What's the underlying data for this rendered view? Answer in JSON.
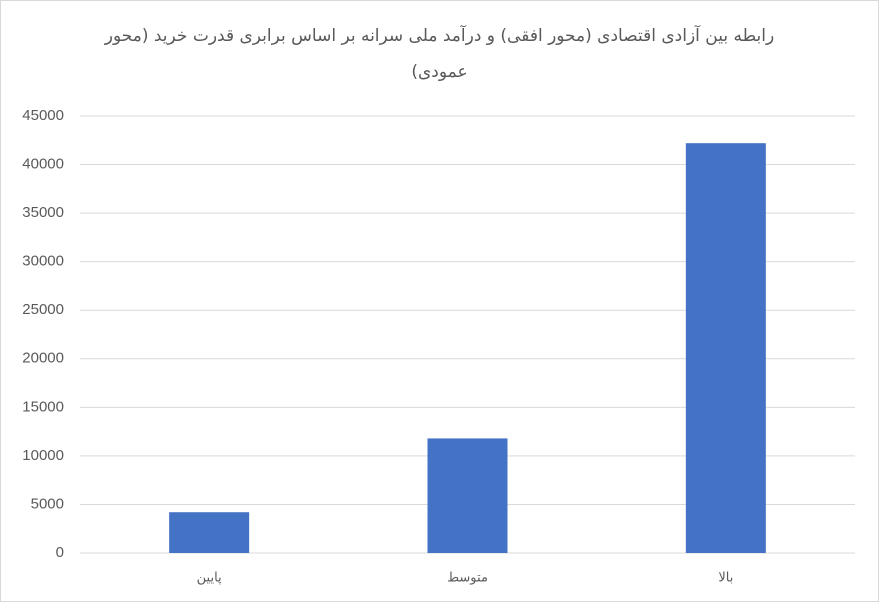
{
  "chart_data": {
    "type": "bar",
    "title": "رابطه بین آزادی اقتصادی (محور افقی) و درآمد ملی سرانه بر اساس برابری قدرت خرید (محور عمودی)",
    "categories": [
      "پایین",
      "متوسط",
      "بالا"
    ],
    "values": [
      4200,
      11800,
      42200
    ],
    "color": "#4472c4",
    "ylim": [
      0,
      45000
    ],
    "yticks": [
      0,
      5000,
      10000,
      15000,
      20000,
      25000,
      30000,
      35000,
      40000,
      45000
    ],
    "grid": true
  }
}
